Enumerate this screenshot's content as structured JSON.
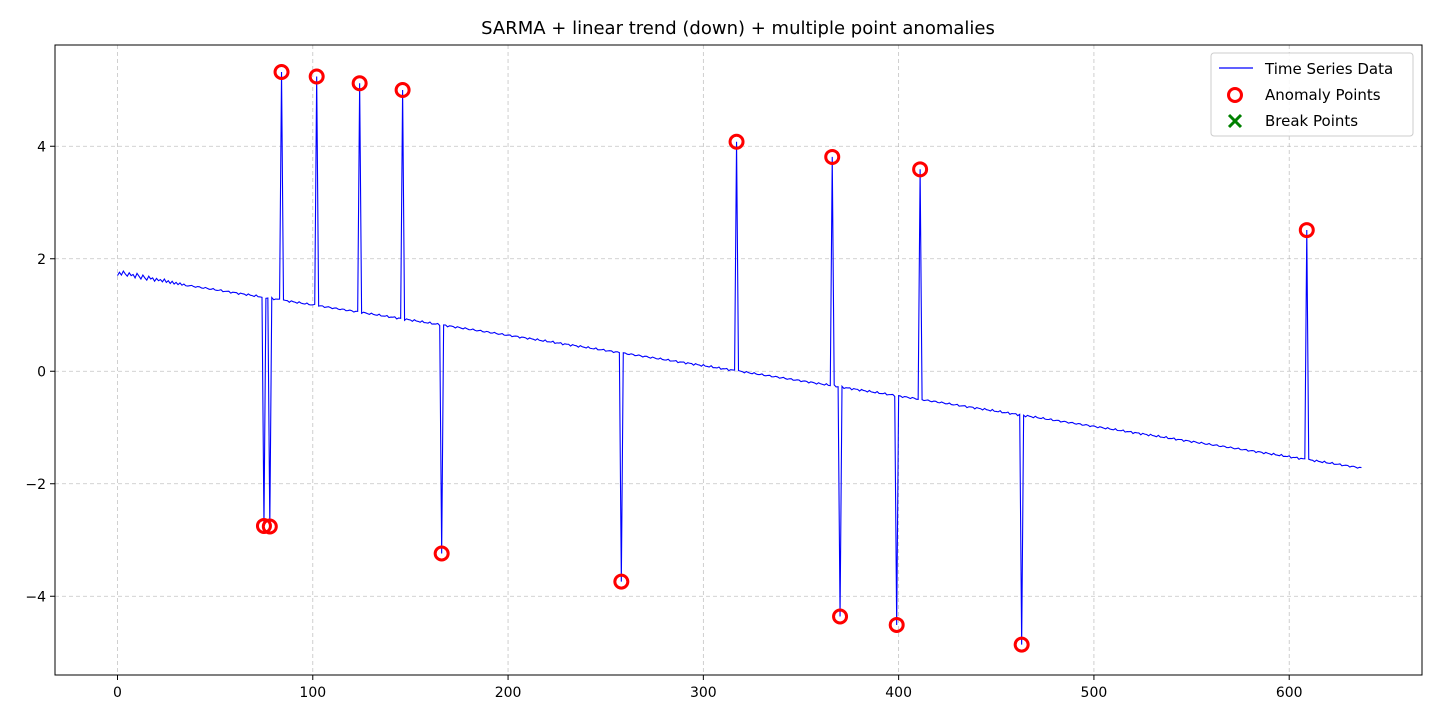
{
  "chart_data": {
    "type": "line",
    "title": "SARMA + linear trend (down) + multiple point anomalies",
    "xlabel": "",
    "ylabel": "",
    "xlim": [
      -32,
      668
    ],
    "ylim": [
      -5.4,
      5.8
    ],
    "x_ticks": [
      0,
      100,
      200,
      300,
      400,
      500,
      600
    ],
    "y_ticks": [
      -4,
      -2,
      0,
      2,
      4
    ],
    "x_tick_labels": [
      "0",
      "100",
      "200",
      "300",
      "400",
      "500",
      "600"
    ],
    "y_tick_labels": [
      "−4",
      "−2",
      "0",
      "2",
      "4"
    ],
    "grid": true,
    "legend_position": "top-right",
    "series": [
      {
        "name": "Time Series Data",
        "kind": "line",
        "color": "#0000ff",
        "trend": {
          "x_start": 0,
          "x_end": 637,
          "y_start": 1.72,
          "y_end": -1.72
        },
        "early_noise": [
          [
            0,
            1.7
          ],
          [
            1,
            1.76
          ],
          [
            2,
            1.71
          ],
          [
            3,
            1.78
          ],
          [
            4,
            1.73
          ],
          [
            5,
            1.69
          ],
          [
            6,
            1.75
          ],
          [
            7,
            1.7
          ],
          [
            8,
            1.72
          ],
          [
            9,
            1.66
          ],
          [
            10,
            1.74
          ],
          [
            11,
            1.69
          ],
          [
            12,
            1.64
          ],
          [
            13,
            1.71
          ],
          [
            14,
            1.66
          ],
          [
            15,
            1.62
          ],
          [
            16,
            1.69
          ],
          [
            17,
            1.64
          ],
          [
            18,
            1.66
          ],
          [
            19,
            1.6
          ],
          [
            20,
            1.65
          ],
          [
            21,
            1.61
          ],
          [
            22,
            1.63
          ],
          [
            23,
            1.59
          ],
          [
            24,
            1.64
          ],
          [
            25,
            1.58
          ],
          [
            26,
            1.61
          ],
          [
            27,
            1.56
          ],
          [
            28,
            1.6
          ],
          [
            29,
            1.55
          ],
          [
            30,
            1.58
          ],
          [
            31,
            1.54
          ],
          [
            32,
            1.57
          ],
          [
            33,
            1.53
          ],
          [
            34,
            1.55
          ],
          [
            35,
            1.52
          ]
        ],
        "spikes": [
          [
            75,
            -2.75
          ],
          [
            78,
            -2.76
          ],
          [
            84,
            5.32
          ],
          [
            102,
            5.24
          ],
          [
            124,
            5.12
          ],
          [
            146,
            5.0
          ],
          [
            166,
            -3.24
          ],
          [
            258,
            -3.74
          ],
          [
            317,
            4.08
          ],
          [
            366,
            3.81
          ],
          [
            370,
            -4.36
          ],
          [
            399,
            -4.51
          ],
          [
            411,
            3.59
          ],
          [
            463,
            -4.86
          ],
          [
            609,
            2.51
          ]
        ]
      },
      {
        "name": "Anomaly Points",
        "kind": "scatter",
        "marker": "circle",
        "color": "#ff0000",
        "points": [
          [
            75,
            -2.75
          ],
          [
            78,
            -2.76
          ],
          [
            84,
            5.32
          ],
          [
            102,
            5.24
          ],
          [
            124,
            5.12
          ],
          [
            146,
            5.0
          ],
          [
            166,
            -3.24
          ],
          [
            258,
            -3.74
          ],
          [
            317,
            4.08
          ],
          [
            366,
            3.81
          ],
          [
            370,
            -4.36
          ],
          [
            399,
            -4.51
          ],
          [
            411,
            3.59
          ],
          [
            463,
            -4.86
          ],
          [
            609,
            2.51
          ]
        ]
      },
      {
        "name": "Break Points",
        "kind": "scatter",
        "marker": "x",
        "color": "#008000",
        "points": []
      }
    ]
  }
}
